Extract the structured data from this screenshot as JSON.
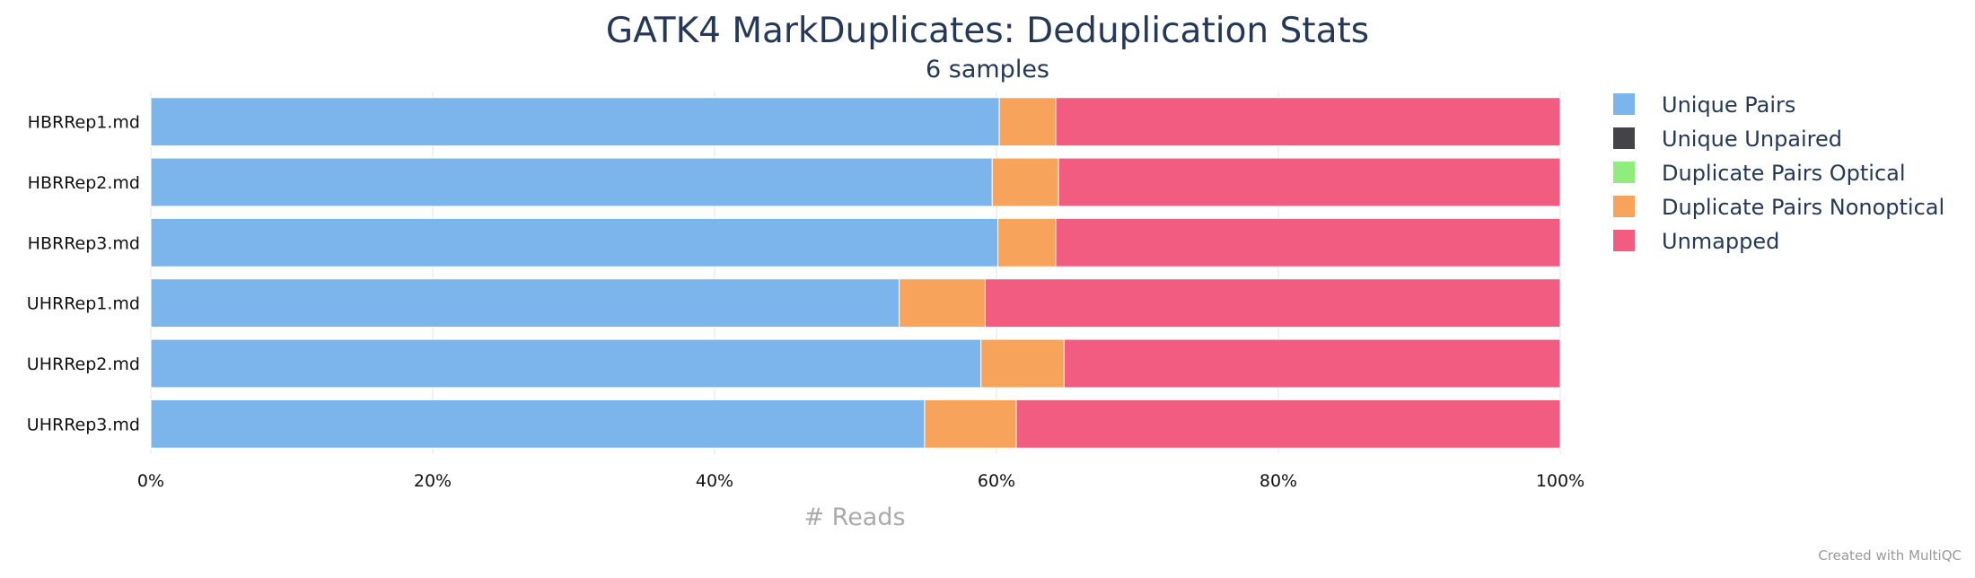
{
  "chart_data": {
    "type": "bar",
    "orientation": "horizontal",
    "stacked": true,
    "percent": true,
    "title": "GATK4 MarkDuplicates: Deduplication Stats",
    "subtitle": "6 samples",
    "xlabel": "# Reads",
    "ylabel": "",
    "xlim": [
      0,
      100
    ],
    "x_ticks": [
      "0%",
      "20%",
      "40%",
      "60%",
      "80%",
      "100%"
    ],
    "grid": true,
    "legend_position": "right",
    "categories": [
      "HBRRep1.md",
      "HBRRep2.md",
      "HBRRep3.md",
      "UHRRep1.md",
      "UHRRep2.md",
      "UHRRep3.md"
    ],
    "series": [
      {
        "name": "Unique Pairs",
        "color": "#7cb5ec",
        "values": [
          60.2,
          59.7,
          60.1,
          53.1,
          58.9,
          54.9
        ]
      },
      {
        "name": "Unique Unpaired",
        "color": "#434348",
        "values": [
          0,
          0,
          0,
          0,
          0,
          0
        ]
      },
      {
        "name": "Duplicate Pairs Optical",
        "color": "#90ed7d",
        "values": [
          0,
          0,
          0,
          0,
          0,
          0
        ]
      },
      {
        "name": "Duplicate Pairs Nonoptical",
        "color": "#f7a35c",
        "values": [
          4.0,
          4.7,
          4.1,
          6.1,
          5.9,
          6.5
        ]
      },
      {
        "name": "Unmapped",
        "color": "#f15c80",
        "values": [
          35.8,
          35.6,
          35.8,
          40.8,
          35.2,
          38.6
        ]
      }
    ]
  },
  "footer": {
    "credit": "Created with MultiQC"
  },
  "colors": {
    "title": "#253858",
    "axis_title": "#aaaaaa",
    "tick_label": "#111111",
    "grid": "#e6e6e6",
    "credit": "#999999"
  }
}
